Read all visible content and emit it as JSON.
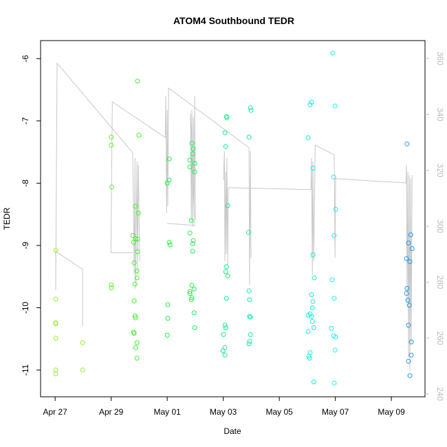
{
  "chart_data": {
    "type": "scatter",
    "title": "ATOM4 Southbound TEDR",
    "xlabel": "Date",
    "ylabel": "TEDR",
    "xlim": [
      -0.52,
      13.2
    ],
    "xticks": [
      {
        "value": 0,
        "label": "Apr 27"
      },
      {
        "value": 2,
        "label": "Apr 29"
      },
      {
        "value": 4,
        "label": "May 01"
      },
      {
        "value": 6,
        "label": "May 03"
      },
      {
        "value": 8,
        "label": "May 05"
      },
      {
        "value": 10,
        "label": "May 07"
      },
      {
        "value": 12,
        "label": "May 09"
      }
    ],
    "ylim": [
      -11.43,
      -5.71
    ],
    "yticks": [
      -11,
      -10,
      -9,
      -8,
      -7,
      -6
    ],
    "y2lim": [
      239,
      366.4
    ],
    "y2ticks": [
      240,
      260,
      280,
      300,
      320,
      340,
      360
    ],
    "series": [
      {
        "type": "line",
        "axis": "y2",
        "color": "#c8c8c8",
        "x": [
          0.02,
          0.02,
          0.98,
          0.98,
          null,
          0.02,
          0.07,
          2.77,
          2.82,
          2.85,
          2.87,
          2.92,
          2.94,
          2.97,
          3.02,
          null,
          2.77,
          1.99,
          2.04,
          3.93,
          3.95,
          3.98,
          4.0,
          4.02,
          4.05,
          6.92,
          6.94,
          6.97,
          6.99,
          null,
          4.0,
          4.98,
          4.83,
          4.86,
          4.88,
          4.91,
          4.93,
          4.96,
          4.98,
          5.01,
          null,
          6.01,
          6.04,
          6.06,
          6.09,
          6.11,
          6.13,
          6.16,
          6.18,
          9.13,
          9.15,
          9.18,
          9.2,
          9.23,
          9.25,
          9.28,
          9.96,
          9.99,
          10.01,
          12.52,
          12.54,
          12.56,
          12.59,
          12.61,
          12.64,
          12.66,
          12.69,
          12.71,
          12.74
        ],
        "values": [
          277.7,
          291.0,
          284.6,
          264.2,
          null,
          277.2,
          358.3,
          326.3,
          282.6,
          324.4,
          277.7,
          323.1,
          282.6,
          321.9,
          287.5,
          null,
          290.5,
          290.5,
          344.5,
          331.7,
          346.5,
          304.7,
          341.6,
          307.2,
          349.4,
          328.1,
          278.9,
          326.8,
          288.7,
          null,
          301.0,
          300.3,
          340.3,
          302.3,
          341.6,
          299.8,
          339.1,
          303.5,
          346.5,
          302.3,
          null,
          316.5,
          326.8,
          287.5,
          319.5,
          290.0,
          324.4,
          286.3,
          313.8,
          313.1,
          324.4,
          282.6,
          323.1,
          287.5,
          303.5,
          329.0,
          325.6,
          288.7,
          317.0,
          315.5,
          321.9,
          272.8,
          319.5,
          253.1,
          318.2,
          248.2,
          317.0,
          258.0,
          318.2
        ]
      },
      {
        "type": "scatter",
        "color": "#99ee33",
        "x": [
          0.02,
          0.02,
          0.02,
          0.02,
          0.02,
          0.02,
          0.02,
          0.98,
          0.98
        ],
        "values": [
          -9.08,
          -9.86,
          -10.24,
          -10.26,
          -10.49,
          -11.0,
          -11.06,
          -10.56,
          -11.0
        ]
      },
      {
        "type": "scatter",
        "color": "#66ee33",
        "x": [
          2.0,
          2.0,
          2.02,
          2.0,
          2.01
        ],
        "values": [
          -7.26,
          -7.39,
          -8.06,
          -9.63,
          -9.68
        ]
      },
      {
        "type": "scatter",
        "color": "#44ee33",
        "x": [
          2.94,
          2.99,
          2.87,
          2.97,
          2.77,
          2.87,
          2.94,
          2.8,
          2.94,
          2.82,
          2.92,
          2.92,
          2.85,
          2.82,
          2.85,
          2.87,
          2.8,
          2.82,
          2.92,
          2.87,
          2.92
        ],
        "values": [
          -6.36,
          -7.23,
          -8.37,
          -8.48,
          -8.84,
          -8.89,
          -8.9,
          -8.95,
          -9.1,
          -9.28,
          -9.41,
          -9.52,
          -9.62,
          -9.89,
          -10.13,
          -10.16,
          -10.39,
          -10.41,
          -10.56,
          -10.64,
          -10.81
        ]
      },
      {
        "type": "scatter",
        "color": "#22ee44",
        "x": [
          4.07,
          4.07,
          4.0,
          4.07,
          4.1,
          4.02,
          4.02,
          4.0
        ],
        "values": [
          -7.61,
          -7.95,
          -8.0,
          -8.95,
          -8.99,
          -9.95,
          -10.17,
          -10.44
        ]
      },
      {
        "type": "scatter",
        "color": "#22ee55",
        "x": [
          4.88,
          4.93,
          4.91,
          4.81,
          4.98,
          4.81,
          4.98,
          4.86,
          4.81,
          4.93,
          4.91,
          4.91,
          4.88,
          4.96,
          4.81,
          4.81,
          4.88,
          4.86,
          4.96,
          4.98
        ],
        "values": [
          -7.36,
          -7.45,
          -7.53,
          -7.63,
          -7.68,
          -7.74,
          -7.82,
          -8.6,
          -8.8,
          -8.92,
          -8.97,
          -9.09,
          -9.64,
          -9.7,
          -9.74,
          -9.77,
          -9.84,
          -9.87,
          -10.08,
          -10.32
        ]
      },
      {
        "type": "scatter",
        "color": "#11ee88",
        "x": [
          6.06,
          6.11,
          6.13,
          6.09,
          6.16,
          6.11,
          6.09,
          6.16,
          6.11,
          6.06,
          6.09,
          6.01,
          6.06,
          5.99,
          6.06
        ],
        "values": [
          -7.19,
          -6.93,
          -6.95,
          -7.41,
          -8.36,
          -9.34,
          -9.42,
          -9.49,
          -9.85,
          -10.28,
          -10.32,
          -10.43,
          -10.64,
          -10.69,
          -10.76
        ]
      },
      {
        "type": "scatter",
        "color": "#11eeaa",
        "x": [
          6.97,
          6.99,
          6.92,
          6.9,
          6.92,
          6.94,
          6.94,
          6.97,
          6.97,
          6.94,
          6.92
        ],
        "values": [
          -6.79,
          -6.83,
          -7.26,
          -8.79,
          -9.73,
          -9.87,
          -10.14,
          -10.15,
          -10.43,
          -10.54,
          -10.58
        ]
      },
      {
        "type": "scatter",
        "color": "#11eedd",
        "x": [
          9.03,
          9.15,
          9.1,
          9.2,
          9.2,
          9.25,
          9.15,
          9.2,
          9.18,
          9.1,
          9.03,
          9.15,
          9.18,
          9.23,
          9.03,
          9.1,
          9.05,
          9.08,
          9.23
        ],
        "values": [
          -7.27,
          -6.7,
          -6.74,
          -7.76,
          -9.15,
          -9.52,
          -9.79,
          -9.9,
          -10.0,
          -10.1,
          -10.12,
          -10.14,
          -10.22,
          -10.32,
          -10.38,
          -10.72,
          -10.78,
          -10.81,
          -11.19
        ]
      },
      {
        "type": "scatter",
        "color": "#22eeee",
        "x": [
          9.91,
          9.99,
          9.94,
          9.96,
          10.01,
          9.89,
          9.96,
          9.86,
          9.94,
          10.01,
          9.99,
          9.96
        ],
        "values": [
          -5.91,
          -6.76,
          -7.9,
          -8.84,
          -8.42,
          -9.55,
          -9.85,
          -10.33,
          -10.45,
          -10.47,
          -10.68,
          -11.21
        ]
      },
      {
        "type": "scatter",
        "color": "#2299ee",
        "x": [
          12.56,
          12.69,
          12.61,
          12.74,
          12.54,
          12.66,
          12.56,
          12.54,
          12.59,
          12.64,
          12.61,
          12.71,
          12.71,
          12.61,
          12.66
        ],
        "values": [
          -7.37,
          -8.83,
          -8.96,
          -9.05,
          -9.21,
          -9.26,
          -9.69,
          -9.77,
          -9.88,
          -9.96,
          -10.28,
          -10.55,
          -10.76,
          -10.86,
          -11.09
        ]
      }
    ]
  }
}
